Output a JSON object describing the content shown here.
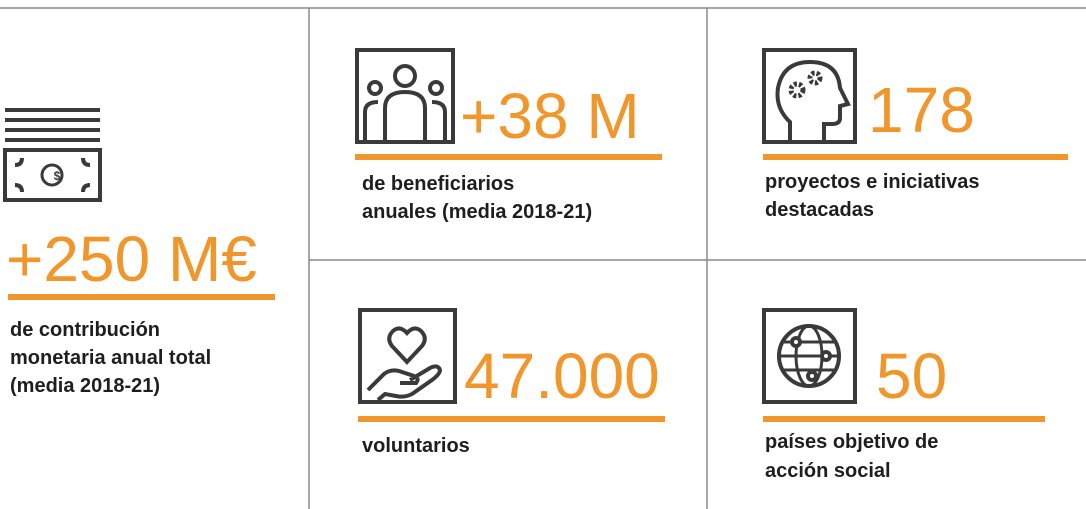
{
  "stats": [
    {
      "value": "+250 M€",
      "label": [
        "de contribución",
        "monetaria anual total",
        "(media 2018-21)"
      ]
    },
    {
      "value": "+38 M",
      "label": [
        "de beneficiarios",
        "anuales (media 2018-21)"
      ]
    },
    {
      "value": "178",
      "label": [
        "proyectos e iniciativas",
        "destacadas"
      ]
    },
    {
      "value": "47.000",
      "label": [
        "voluntarios"
      ]
    },
    {
      "value": "50",
      "label": [
        "países objetivo de",
        "acción social"
      ]
    }
  ]
}
